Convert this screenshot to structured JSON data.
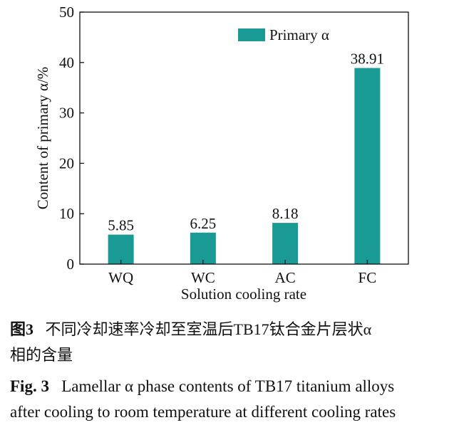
{
  "chart_data": {
    "type": "bar",
    "categories": [
      "WQ",
      "WC",
      "AC",
      "FC"
    ],
    "series": [
      {
        "name": "Primary α",
        "values": [
          5.85,
          6.25,
          8.18,
          38.91
        ]
      }
    ],
    "data_labels": [
      "5.85",
      "6.25",
      "8.18",
      "38.91"
    ],
    "xlabel": "Solution cooling rate",
    "ylabel": "Content of primary α/%",
    "ylim": [
      0,
      50
    ],
    "yticks": [
      0,
      10,
      20,
      30,
      40,
      50
    ],
    "legend": {
      "label": "Primary α",
      "placement": "top-right"
    },
    "grid": false,
    "bar_color": "#1a9a94"
  },
  "caption": {
    "cn_label": "图3",
    "cn_text_line1": "不同冷却速率冷却至室温后TB17钛合金片层状α",
    "cn_text_line2": "相的含量",
    "en_label": "Fig. 3",
    "en_text_line1": "Lamellar α phase contents of TB17 titanium alloys",
    "en_text_line2": "after cooling to room temperature at different cooling rates"
  }
}
